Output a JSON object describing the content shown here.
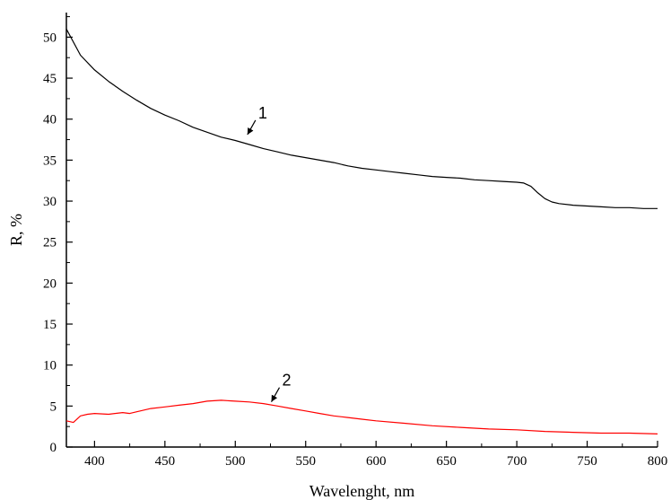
{
  "chart_data": {
    "type": "line",
    "title": "",
    "xlabel": "Wavelenght, nm",
    "ylabel": "R, %",
    "xlim": [
      380,
      800
    ],
    "ylim": [
      0,
      53
    ],
    "xticks": [
      400,
      450,
      500,
      550,
      600,
      650,
      700,
      750,
      800
    ],
    "yticks": [
      0,
      5,
      10,
      15,
      20,
      25,
      30,
      35,
      40,
      45,
      50
    ],
    "grid": false,
    "legend": "none",
    "series": [
      {
        "color": "#000000",
        "x": [
          380,
          390,
          400,
          410,
          420,
          430,
          440,
          450,
          460,
          470,
          480,
          490,
          500,
          510,
          520,
          530,
          540,
          550,
          560,
          570,
          580,
          590,
          600,
          610,
          620,
          630,
          640,
          650,
          660,
          670,
          680,
          690,
          700,
          705,
          710,
          715,
          720,
          725,
          730,
          740,
          750,
          760,
          770,
          780,
          790,
          800
        ],
        "y": [
          51.0,
          47.8,
          46.0,
          44.6,
          43.4,
          42.3,
          41.3,
          40.5,
          39.8,
          39.0,
          38.4,
          37.8,
          37.4,
          36.9,
          36.4,
          36.0,
          35.6,
          35.3,
          35.0,
          34.7,
          34.3,
          34.0,
          33.8,
          33.6,
          33.4,
          33.2,
          33.0,
          32.9,
          32.8,
          32.6,
          32.5,
          32.4,
          32.3,
          32.2,
          31.8,
          31.0,
          30.3,
          29.9,
          29.7,
          29.5,
          29.4,
          29.3,
          29.2,
          29.2,
          29.1,
          29.1
        ]
      },
      {
        "color": "#ff0000",
        "x": [
          380,
          385,
          390,
          395,
          400,
          410,
          420,
          425,
          430,
          440,
          450,
          460,
          470,
          480,
          490,
          500,
          510,
          520,
          530,
          540,
          550,
          560,
          570,
          580,
          590,
          600,
          620,
          640,
          660,
          680,
          700,
          720,
          740,
          760,
          780,
          800
        ],
        "y": [
          3.2,
          3.0,
          3.8,
          4.0,
          4.1,
          4.0,
          4.2,
          4.1,
          4.3,
          4.7,
          4.9,
          5.1,
          5.3,
          5.6,
          5.7,
          5.6,
          5.5,
          5.3,
          5.0,
          4.7,
          4.4,
          4.1,
          3.8,
          3.6,
          3.4,
          3.2,
          2.9,
          2.6,
          2.4,
          2.2,
          2.1,
          1.9,
          1.8,
          1.7,
          1.7,
          1.6
        ]
      }
    ],
    "annotations": [
      {
        "text": "1",
        "arrow_to": [
          508,
          38.0
        ]
      },
      {
        "text": "2",
        "arrow_to": [
          525,
          5.4
        ]
      }
    ]
  }
}
